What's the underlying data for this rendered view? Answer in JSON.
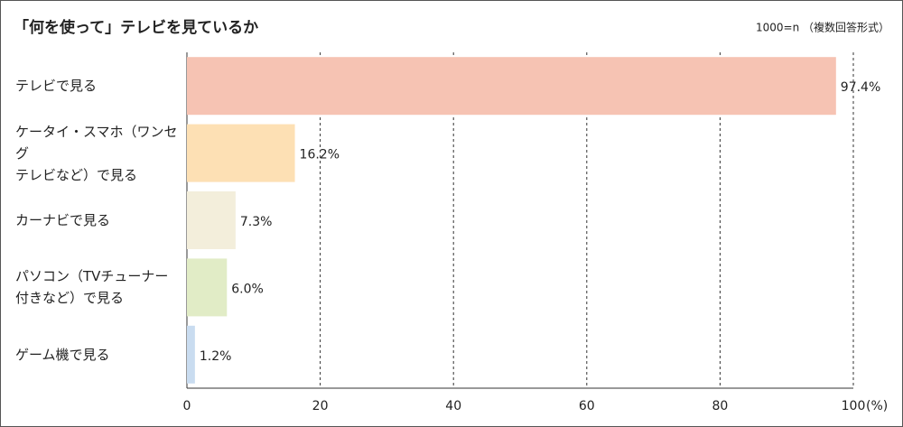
{
  "chart_data": {
    "type": "bar",
    "orientation": "horizontal",
    "title": "「何を使って」テレビを見ているか",
    "note": "1000=n （複数回答形式）",
    "x_unit": "(%)",
    "categories": [
      "テレビで見る",
      "ケータイ・スマホ（ワンセグ\nテレビなど）で見る",
      "カーナビで見る",
      "パソコン（TVチューナー\n付きなど）で見る",
      "ゲーム機で見る"
    ],
    "values": [
      97.4,
      16.2,
      7.3,
      6.0,
      1.2
    ],
    "value_labels": [
      "97.4%",
      "16.2%",
      "7.3%",
      "6.0%",
      "1.2%"
    ],
    "colors": [
      "#f6c3b3",
      "#fde0b4",
      "#f3eedb",
      "#e1ecc6",
      "#c9dcf0"
    ],
    "xlim": [
      0,
      100
    ],
    "xticks": [
      0,
      20,
      40,
      60,
      80,
      100
    ],
    "grid": true
  }
}
